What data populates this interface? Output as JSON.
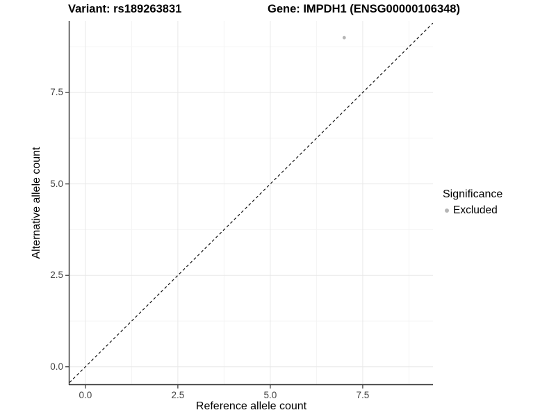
{
  "titles": {
    "variant": "Variant: rs189263831",
    "gene": "Gene: IMPDH1 (ENSG00000106348)"
  },
  "legend": {
    "title": "Significance",
    "items": [
      {
        "label": "Excluded",
        "color": "#b5b5b5",
        "marker": "circle"
      }
    ]
  },
  "colors": {
    "background": "#ffffff",
    "point": "#b5b5b5",
    "grid_major": "#e8e8e8",
    "grid_minor": "#f4f4f4",
    "axis_line": "#2f2f2f",
    "tick_label": "#444444",
    "reference_line": "#111111",
    "title_text": "#000000"
  },
  "chart_data": {
    "type": "scatter",
    "variant_title": "Variant: rs189263831",
    "gene_title": "Gene: IMPDH1 (ENSG00000106348)",
    "xlabel": "Reference allele count",
    "ylabel": "Alternative allele count",
    "xlim": [
      -0.43,
      9.4
    ],
    "ylim": [
      -0.48,
      9.46
    ],
    "x_ticks": [
      0,
      2.5,
      5,
      7.5
    ],
    "x_tick_labels": [
      "0.0",
      "2.5",
      "5.0",
      "7.5"
    ],
    "x_minor_ticks": [
      1.25,
      3.75,
      6.25,
      8.75
    ],
    "y_ticks": [
      0,
      2.5,
      5,
      7.5
    ],
    "y_tick_labels": [
      "0.0",
      "2.5",
      "5.0",
      "7.5"
    ],
    "y_minor_ticks": [
      1.25,
      3.75,
      6.25,
      8.75
    ],
    "grid": true,
    "legend_position": "right",
    "series": [
      {
        "name": "Excluded",
        "color": "#b5b5b5",
        "points": [
          {
            "x": 7,
            "y": 9
          }
        ]
      }
    ],
    "reference_line": {
      "slope": 1,
      "intercept": 0,
      "style": "dashed"
    }
  }
}
